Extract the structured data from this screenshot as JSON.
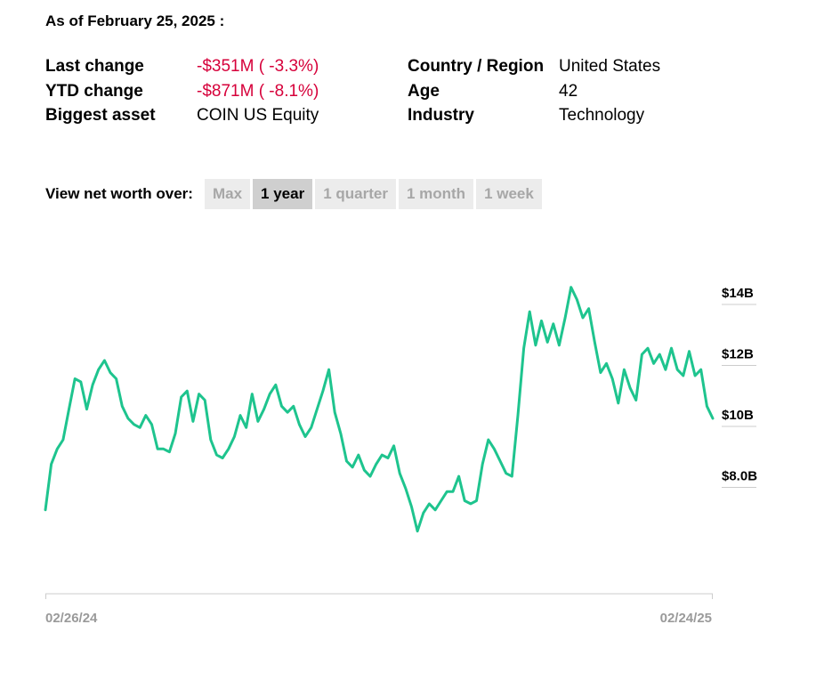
{
  "header": {
    "as_of": "As of February 25, 2025 :"
  },
  "stats_left": [
    {
      "label": "Last change",
      "value": "-$351M ( -3.3%)",
      "negative": true
    },
    {
      "label": "YTD change",
      "value": "-$871M ( -8.1%)",
      "negative": true
    },
    {
      "label": "Biggest asset",
      "value": "COIN US Equity",
      "negative": false
    }
  ],
  "stats_right": [
    {
      "label": "Country / Region",
      "value": "United States"
    },
    {
      "label": "Age",
      "value": "42"
    },
    {
      "label": "Industry",
      "value": "Technology"
    }
  ],
  "range_selector": {
    "label": "View net worth over:",
    "options": [
      "Max",
      "1 year",
      "1 quarter",
      "1 month",
      "1 week"
    ],
    "selected": "1 year"
  },
  "colors": {
    "line": "#1ec48e",
    "negative": "#d6003a",
    "axis": "#cccccc"
  },
  "chart_data": {
    "type": "line",
    "x_start": "02/26/24",
    "x_end": "02/24/25",
    "x_tick_labels": [
      "02/26/24",
      "02/24/25"
    ],
    "y_tick_labels": [
      "$14B",
      "$12B",
      "$10B",
      "$8.0B"
    ],
    "y_tick_values": [
      14,
      12,
      10,
      8
    ],
    "ylabel": "",
    "xlabel": "",
    "grid": false,
    "series": [
      {
        "values": [
          7.0,
          8.5,
          9.0,
          9.3,
          10.3,
          11.3,
          11.2,
          10.3,
          11.1,
          11.6,
          11.9,
          11.5,
          11.3,
          10.4,
          10.0,
          9.8,
          9.7,
          10.1,
          9.8,
          9.0,
          9.0,
          8.9,
          9.5,
          10.7,
          10.9,
          9.9,
          10.8,
          10.6,
          9.3,
          8.8,
          8.7,
          9.0,
          9.4,
          10.1,
          9.7,
          10.8,
          9.9,
          10.3,
          10.8,
          11.1,
          10.4,
          10.2,
          10.4,
          9.8,
          9.4,
          9.7,
          10.3,
          10.9,
          11.6,
          10.2,
          9.5,
          8.6,
          8.4,
          8.8,
          8.3,
          8.1,
          8.5,
          8.8,
          8.7,
          9.1,
          8.2,
          7.7,
          7.1,
          6.3,
          6.9,
          7.2,
          7.0,
          7.3,
          7.6,
          7.6,
          8.1,
          7.3,
          7.2,
          7.3,
          8.5,
          9.3,
          9.0,
          8.6,
          8.2,
          8.1,
          10.1,
          12.3,
          13.5,
          12.4,
          13.2,
          12.5,
          13.1,
          12.4,
          13.3,
          14.3,
          13.9,
          13.3,
          13.6,
          12.5,
          11.5,
          11.8,
          11.3,
          10.5,
          11.6,
          11.0,
          10.6,
          12.1,
          12.3,
          11.8,
          12.1,
          11.6,
          12.3,
          11.6,
          11.4,
          12.2,
          11.4,
          11.6,
          10.4,
          10.0
        ]
      }
    ]
  }
}
